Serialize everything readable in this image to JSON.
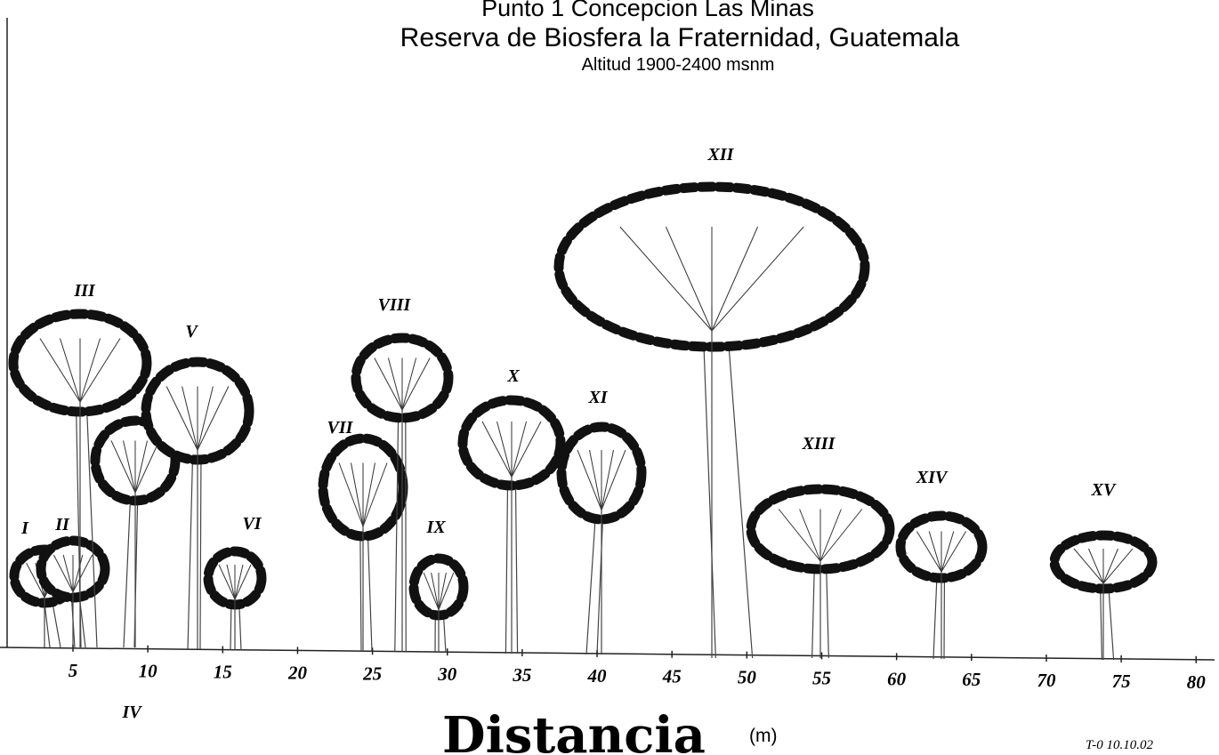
{
  "header": {
    "title": "Punto 1  Concepcion Las  Minas",
    "subtitle": "Reserva de Biosfera la Fraternidad, Guatemala",
    "altitude": "Altitud 1900-2400 msnm"
  },
  "trees": [
    {
      "label": "I"
    },
    {
      "label": "II"
    },
    {
      "label": "III"
    },
    {
      "label": "IV"
    },
    {
      "label": "V"
    },
    {
      "label": "VI"
    },
    {
      "label": "VII"
    },
    {
      "label": "VIII"
    },
    {
      "label": "IX"
    },
    {
      "label": "X"
    },
    {
      "label": "XI"
    },
    {
      "label": "XII"
    },
    {
      "label": "XIII"
    },
    {
      "label": "XIV"
    },
    {
      "label": "XV"
    }
  ],
  "axis": {
    "ticks": [
      5,
      10,
      15,
      20,
      25,
      30,
      35,
      40,
      45,
      50,
      55,
      60,
      65,
      70,
      75,
      80
    ],
    "label": "Distancia",
    "unit": "(m)"
  },
  "footer": {
    "code": "T-0 10.10.02"
  }
}
